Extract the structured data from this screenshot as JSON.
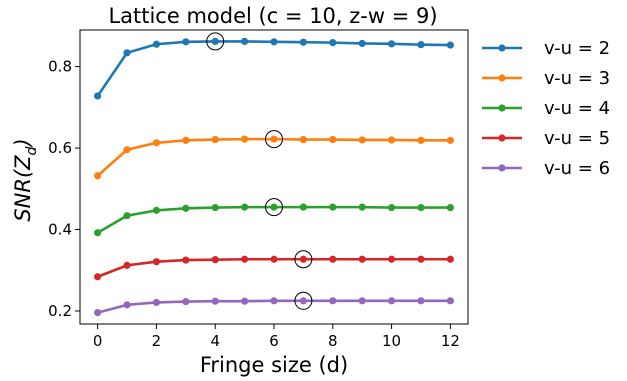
{
  "chart_data": {
    "type": "line",
    "title": "Lattice model (c = 10, z-w = 9)",
    "xlabel": "Fringe size (d)",
    "ylabel": "SNR(Z_d)",
    "ylabel_main": "SNR(Z",
    "ylabel_sub": "d",
    "ylabel_close": ")",
    "x": [
      0,
      1,
      2,
      3,
      4,
      5,
      6,
      7,
      8,
      9,
      10,
      11,
      12
    ],
    "xlim": [
      -0.6,
      12.6
    ],
    "ylim": [
      0.168,
      0.89
    ],
    "xticks": [
      0,
      2,
      4,
      6,
      8,
      10,
      12
    ],
    "xtick_labels": [
      "0",
      "2",
      "4",
      "6",
      "8",
      "10",
      "12"
    ],
    "yticks": [
      0.2,
      0.4,
      0.6,
      0.8
    ],
    "ytick_labels": [
      "0.2",
      "0.4",
      "0.6",
      "0.8"
    ],
    "grid": false,
    "legend_position": "outside-right",
    "series": [
      {
        "name": "v-u = 2",
        "color": "#1f77b4",
        "values": [
          0.728,
          0.834,
          0.855,
          0.861,
          0.862,
          0.862,
          0.861,
          0.86,
          0.859,
          0.857,
          0.856,
          0.854,
          0.853
        ],
        "max_index": 4
      },
      {
        "name": "v-u = 3",
        "color": "#ff7f0e",
        "values": [
          0.532,
          0.596,
          0.613,
          0.619,
          0.621,
          0.622,
          0.622,
          0.621,
          0.621,
          0.62,
          0.62,
          0.619,
          0.619
        ],
        "max_index": 6
      },
      {
        "name": "v-u = 4",
        "color": "#2ca02c",
        "values": [
          0.392,
          0.434,
          0.447,
          0.452,
          0.454,
          0.455,
          0.455,
          0.455,
          0.455,
          0.455,
          0.454,
          0.454,
          0.454
        ],
        "max_index": 6
      },
      {
        "name": "v-u = 5",
        "color": "#d62728",
        "values": [
          0.284,
          0.312,
          0.321,
          0.325,
          0.326,
          0.327,
          0.327,
          0.327,
          0.327,
          0.327,
          0.327,
          0.327,
          0.327
        ],
        "max_index": 7
      },
      {
        "name": "v-u = 6",
        "color": "#9467bd",
        "values": [
          0.196,
          0.215,
          0.221,
          0.223,
          0.224,
          0.224,
          0.225,
          0.225,
          0.225,
          0.225,
          0.225,
          0.225,
          0.225
        ],
        "max_index": 7
      }
    ]
  }
}
